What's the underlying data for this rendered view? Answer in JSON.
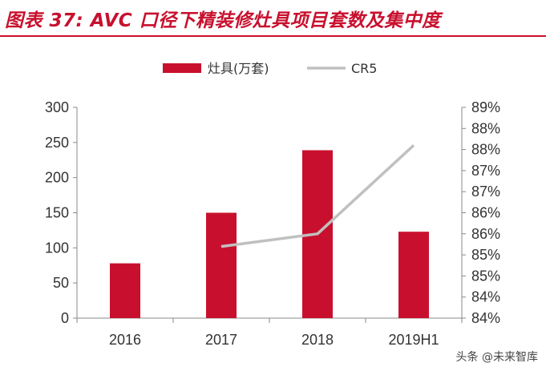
{
  "header": {
    "title": "图表 37: AVC 口径下精装修灶具项目套数及集中度"
  },
  "watermark": "头条 @未来智库",
  "colors": {
    "bar": "#c8102e",
    "line": "#c0c0c0",
    "axis": "#888888",
    "title": "#c8102e"
  },
  "chart_data": {
    "type": "bar",
    "title": "",
    "categories": [
      "2016",
      "2017",
      "2018",
      "2019H1"
    ],
    "series": [
      {
        "name": "灶具(万套)",
        "type": "bar",
        "axis": "left",
        "values": [
          78,
          150,
          239,
          123
        ]
      },
      {
        "name": "CR5",
        "type": "line",
        "axis": "right",
        "values": [
          null,
          85.7,
          86.0,
          88.1
        ]
      }
    ],
    "left_axis": {
      "ylim": [
        0,
        300
      ],
      "ticks": [
        0,
        50,
        100,
        150,
        200,
        250,
        300
      ]
    },
    "right_axis": {
      "ylim": [
        84,
        89
      ],
      "tick_labels": [
        "84%",
        "84%",
        "85%",
        "85%",
        "86%",
        "86%",
        "87%",
        "87%",
        "88%",
        "88%",
        "89%"
      ]
    },
    "legend": {
      "placement": "top-center"
    },
    "grid": false
  }
}
